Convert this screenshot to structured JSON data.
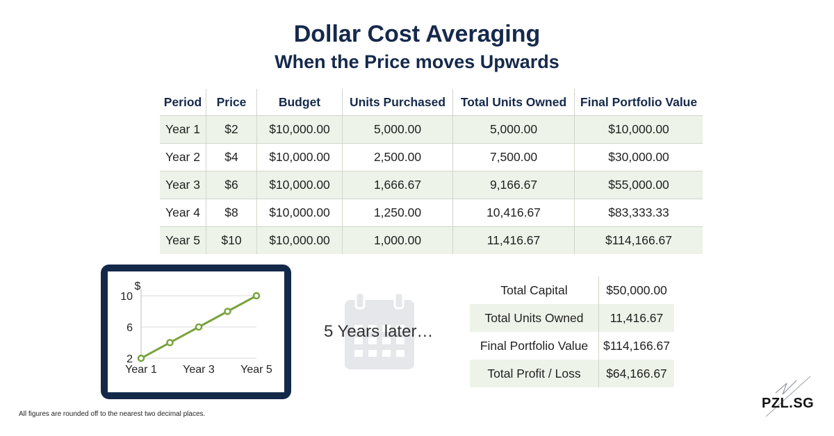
{
  "title": "Dollar Cost Averaging",
  "subtitle": "When the Price moves Upwards",
  "table": {
    "headers": [
      "Period",
      "Price",
      "Budget",
      "Units Purchased",
      "Total Units Owned",
      "Final Portfolio Value"
    ],
    "rows": [
      [
        "Year 1",
        "$2",
        "$10,000.00",
        "5,000.00",
        "5,000.00",
        "$10,000.00"
      ],
      [
        "Year 2",
        "$4",
        "$10,000.00",
        "2,500.00",
        "7,500.00",
        "$30,000.00"
      ],
      [
        "Year 3",
        "$6",
        "$10,000.00",
        "1,666.67",
        "9,166.67",
        "$55,000.00"
      ],
      [
        "Year 4",
        "$8",
        "$10,000.00",
        "1,250.00",
        "10,416.67",
        "$83,333.33"
      ],
      [
        "Year 5",
        "$10",
        "$10,000.00",
        "1,000.00",
        "11,416.67",
        "$114,166.67"
      ]
    ]
  },
  "chart_data": {
    "type": "line",
    "x": [
      "Year 1",
      "Year 2",
      "Year 3",
      "Year 4",
      "Year 5"
    ],
    "x_tick_labels": [
      "Year 1",
      "Year 3",
      "Year 5"
    ],
    "values": [
      2,
      4,
      6,
      8,
      10
    ],
    "y_tick_labels": [
      "2",
      "6",
      "10"
    ],
    "ylabel": "$",
    "ylim": [
      2,
      10
    ],
    "grid": true,
    "line_color": "#7aa33f"
  },
  "later_text": "5 Years later…",
  "summary": [
    {
      "label": "Total Capital",
      "value": "$50,000.00"
    },
    {
      "label": "Total Units Owned",
      "value": "11,416.67"
    },
    {
      "label": "Final Portfolio Value",
      "value": "$114,166.67"
    },
    {
      "label": "Total Profit / Loss",
      "value": "$64,166.67"
    }
  ],
  "footnote": "All figures are rounded off to the nearest two decimal places.",
  "logo_text": "PZL.SG",
  "colors": {
    "navy": "#15294b",
    "row_green": "#edf3e9",
    "line_green": "#7aa33f",
    "icon_gray": "#e6e7ea"
  },
  "icons": [
    "calendar-icon",
    "pzl-logo"
  ]
}
